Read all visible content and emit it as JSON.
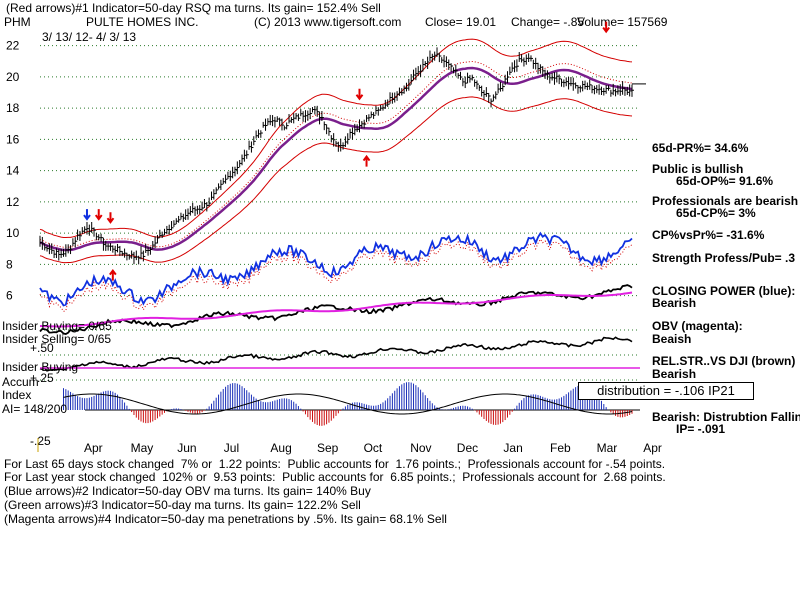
{
  "chart_data": {
    "type": "line",
    "header": {
      "signal": "(Red arrows)#1 Indicator=50-day RSQ ma turns. Its gain= 152.4% Sell",
      "ticker": "PHM",
      "company": "PULTE HOMES INC.",
      "copyright": "(C) 2013 www.tigersoft.com",
      "close": "Close= 19.01",
      "change": "Change= -.85",
      "volume": "Volume= 157569",
      "range": "3/ 13/ 12- 4/ 3/ 13"
    },
    "y_ticks": [
      "22",
      "20",
      "18",
      "16",
      "14",
      "12",
      "10",
      "8",
      "6"
    ],
    "y_values": [
      22,
      20,
      18,
      16,
      14,
      12,
      10,
      8,
      6
    ],
    "ylim": [
      5.4,
      23.0
    ],
    "x_labels": [
      "Apr",
      "May",
      "Jun",
      "Jul",
      "Aug",
      "Sep",
      "Oct",
      "Nov",
      "Dec",
      "Jan",
      "Feb",
      "Mar",
      "Apr"
    ],
    "price_series": {
      "name": "PHM close",
      "x": [
        0,
        4,
        8,
        12,
        16,
        20,
        24,
        28,
        32,
        36,
        40,
        44,
        48,
        52,
        56,
        60,
        64,
        68,
        72,
        76,
        80,
        84,
        88,
        92,
        96,
        100,
        104,
        108,
        112,
        116,
        120,
        124,
        128,
        132,
        136,
        140,
        144,
        148,
        152,
        156,
        160,
        164,
        168,
        172,
        176,
        180,
        184,
        188,
        192,
        196,
        200,
        204,
        208,
        212,
        216,
        220,
        224,
        228,
        232,
        236,
        240,
        244,
        248,
        252
      ],
      "y": [
        9.4,
        9.0,
        8.6,
        8.9,
        9.8,
        10.4,
        9.9,
        9.2,
        9.0,
        8.7,
        8.5,
        8.6,
        9.2,
        10.0,
        10.5,
        10.9,
        11.4,
        11.6,
        12.0,
        12.8,
        13.6,
        14.3,
        15.1,
        16.2,
        16.9,
        17.3,
        16.9,
        17.3,
        17.6,
        17.9,
        17.4,
        16.2,
        15.5,
        16.4,
        16.9,
        17.4,
        17.8,
        18.4,
        19.0,
        19.3,
        20.2,
        20.8,
        21.4,
        21.0,
        20.4,
        19.7,
        19.9,
        19.0,
        18.6,
        19.2,
        20.4,
        21.0,
        21.3,
        20.6,
        20.1,
        19.9,
        19.7,
        19.5,
        19.4,
        19.3,
        19.2,
        19.1,
        19.2,
        19.01
      ]
    },
    "arrows": [
      {
        "color": "red",
        "dir": "down",
        "x": 25,
        "y": 10.9
      },
      {
        "color": "red",
        "dir": "down",
        "x": 30,
        "y": 10.7
      },
      {
        "color": "blue",
        "dir": "down",
        "x": 20,
        "y": 10.9
      },
      {
        "color": "red",
        "dir": "up",
        "x": 31,
        "y": 7.6
      },
      {
        "color": "red",
        "dir": "down",
        "x": 136,
        "y": 18.6
      },
      {
        "color": "red",
        "dir": "up",
        "x": 139,
        "y": 14.9
      },
      {
        "color": "red",
        "dir": "down",
        "x": 241,
        "y": 22.9
      }
    ],
    "sidebar": {
      "pr": "65d-PR%= 34.6%",
      "public": "Public is bullish",
      "op": "65d-OP%= 91.6%",
      "prof": "Professionals are bearish",
      "cp": "65d-CP%= 3%",
      "cpvspr": "CP%vsPr%= -31.6%",
      "strength": "Strength Profess/Pub= .3",
      "closing": "CLOSING POWER (blue):",
      "closing_status": "Bearish",
      "obv": "OBV (magenta):",
      "obv_status": "Beaish",
      "relstr": "REL.STR..VS DJI (brown)",
      "relstr_status": "Bearish",
      "dist_status": "Bearish: Distrubtion Falling",
      "ip": "IP= -.091"
    },
    "left_labels": {
      "insider_buying": "Insider Buying= 0/65",
      "insider_selling": "Insider Selling= 0/65",
      "p50": "+.50",
      "insider_buying2": "Insider Buying",
      "p25": "+.25",
      "accum": "Accum",
      "index": "Index",
      "ai": "AI= 148/200",
      "m25": "-.25"
    },
    "distribution_box": "distribution = -.106 IP21"
  },
  "footer": [
    "For Last 65 days stock changed  7% or  1.22 points:  Public accounts for  1.76 points.;  Professionals account for -.54 points.",
    "For Last year stock changed  102% or  9.53 points:  Public accounts for  6.85 points.;  Professionals account for  2.68 points.",
    "(Blue arrows)#2 Indicator=50-day OBV ma turns. Its gain= 140% Buy",
    "(Green arrows)#3 Indicator=50-day ma turns. Its gain= 122.2% Sell",
    "(Magenta arrows)#4 Indicator=50-day ma penetrations by .5%. Its gain= 68.1% Sell"
  ],
  "colors": {
    "price": "#000000",
    "ma50": "#7a1f8c",
    "bands": "#d40000",
    "closing_power": "#1030e0",
    "obv": "#e020e0",
    "relstr": "#000000",
    "accum_pos": "#1a2fb8",
    "accum_neg": "#cc1010",
    "grid": "#2a7a2a"
  }
}
